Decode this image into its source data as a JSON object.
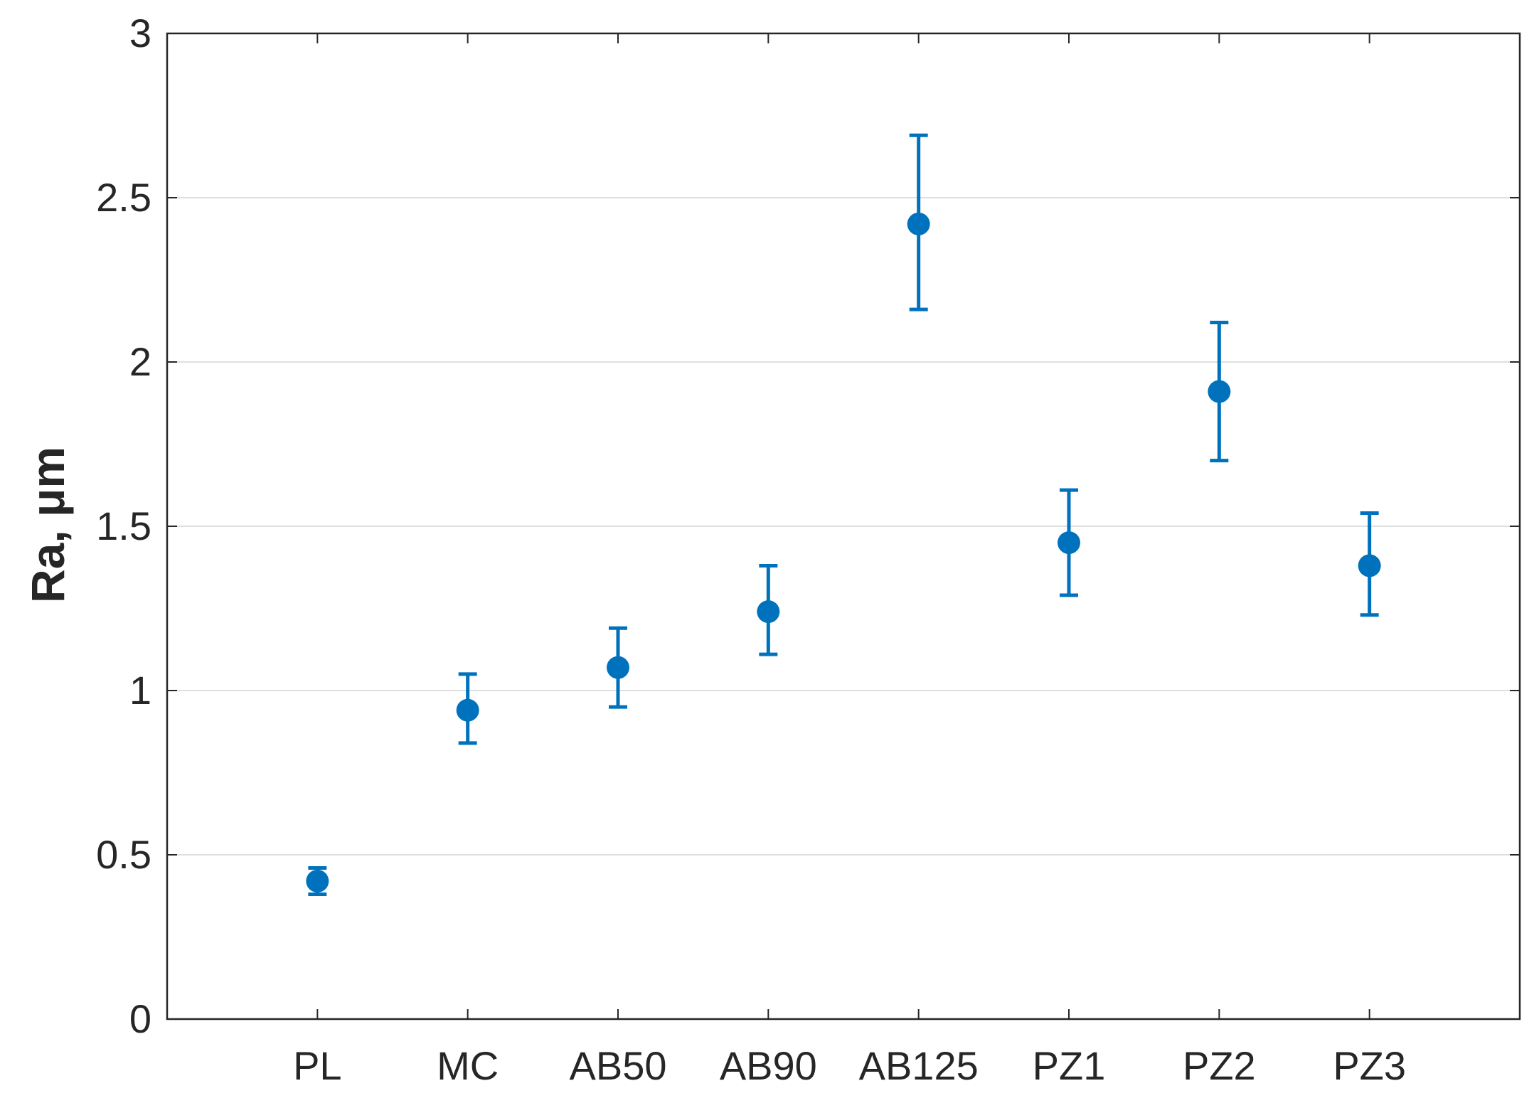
{
  "chart_data": {
    "type": "scatter",
    "title": "",
    "xlabel": "",
    "ylabel": "Ra, μm",
    "categories": [
      "PL",
      "MC",
      "AB50",
      "AB90",
      "AB125",
      "PZ1",
      "PZ2",
      "PZ3"
    ],
    "series": [
      {
        "values": [
          0.42,
          0.94,
          1.07,
          1.24,
          2.42,
          1.45,
          1.91,
          1.38
        ],
        "error_lower": [
          0.38,
          0.84,
          0.95,
          1.11,
          2.16,
          1.29,
          1.7,
          1.23
        ],
        "error_upper": [
          0.46,
          1.05,
          1.19,
          1.38,
          2.69,
          1.61,
          2.12,
          1.54
        ]
      }
    ],
    "ylim": [
      0,
      3
    ],
    "yticks": [
      0,
      0.5,
      1,
      1.5,
      2,
      2.5,
      3
    ],
    "ytick_labels": [
      "0",
      "0.5",
      "1",
      "1.5",
      "2",
      "2.5",
      "3"
    ],
    "grid": "horizontal",
    "legend": "none",
    "colors": {
      "marker": "#0072BD",
      "axis": "#262626",
      "grid": "#dfdfdf"
    }
  }
}
